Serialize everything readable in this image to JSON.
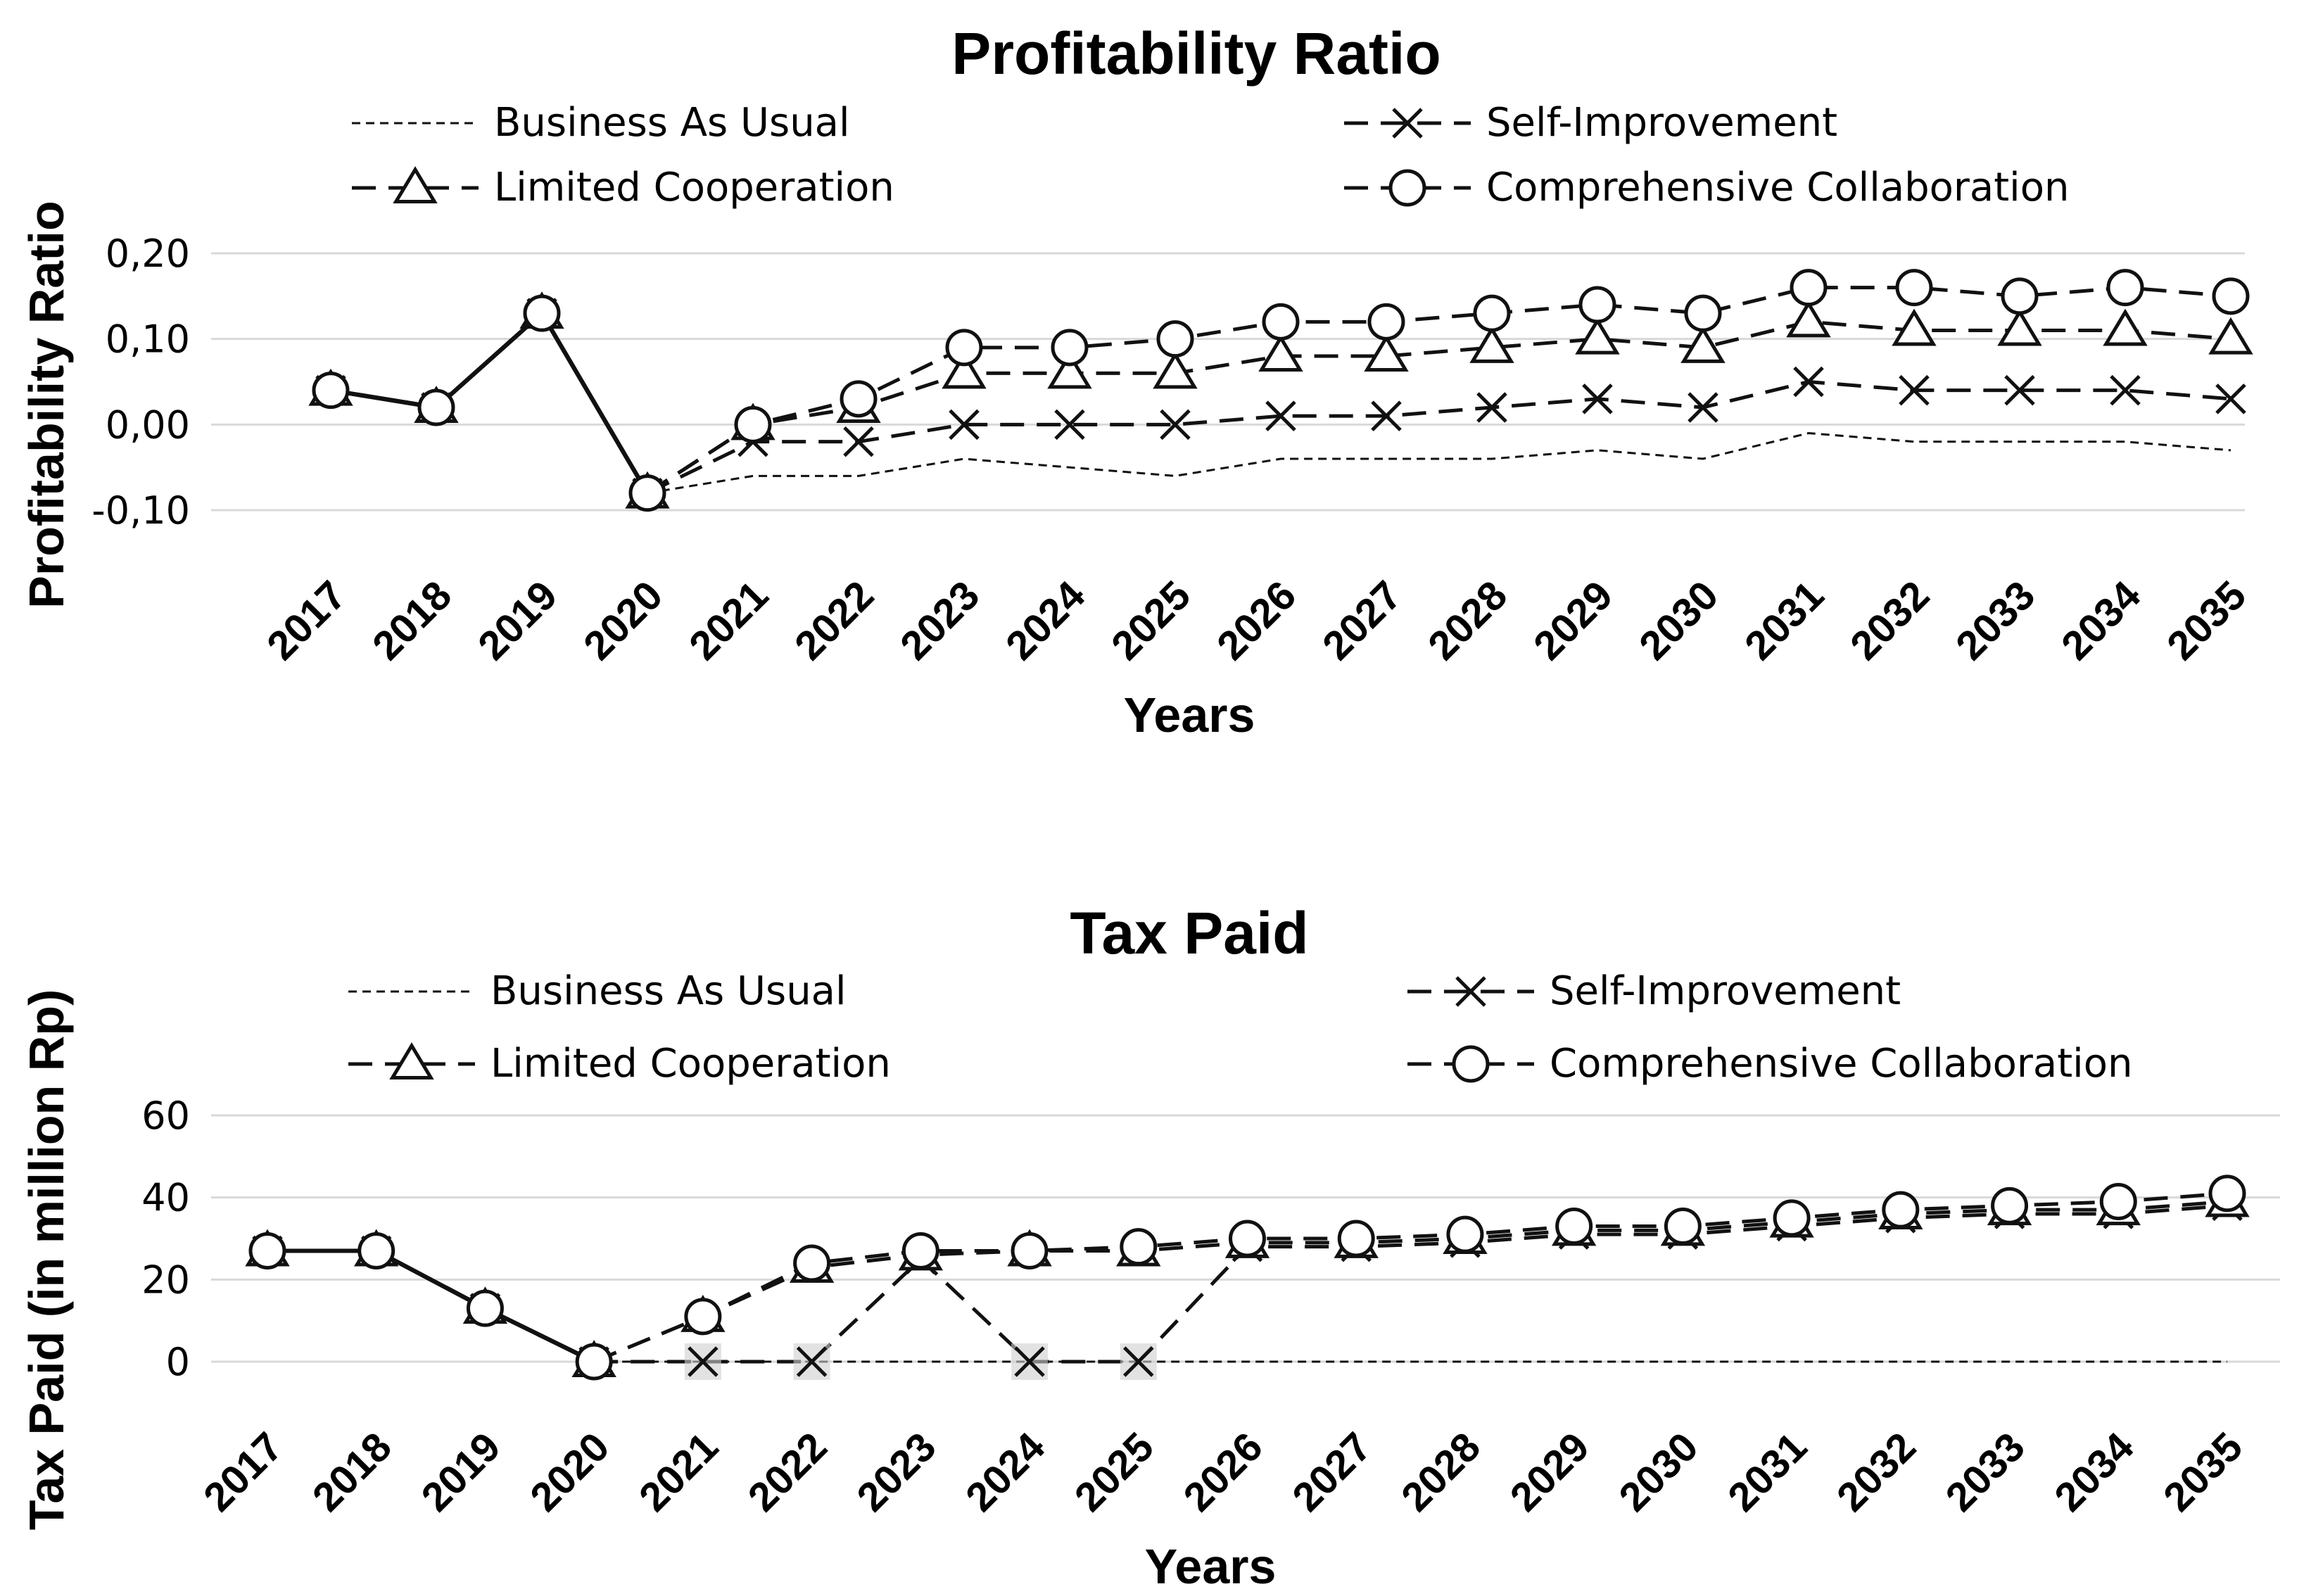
{
  "chart_data": [
    {
      "type": "line",
      "title": "Profitability Ratio",
      "xlabel": "Years",
      "ylabel": "Profitability Ratio",
      "ylim": [
        -0.1,
        0.2
      ],
      "yticks": [
        "-0,10",
        "0,00",
        "0,10",
        "0,20"
      ],
      "grid": true,
      "legend_position": "top",
      "categories": [
        "2017",
        "2018",
        "2019",
        "2020",
        "2021",
        "2022",
        "2023",
        "2024",
        "2025",
        "2026",
        "2027",
        "2028",
        "2029",
        "2030",
        "2031",
        "2032",
        "2033",
        "2034",
        "2035"
      ],
      "series": [
        {
          "name": "Business As Usual",
          "style": "dotted",
          "marker": "none",
          "values": [
            0.04,
            0.02,
            0.13,
            -0.08,
            -0.06,
            -0.06,
            -0.04,
            -0.05,
            -0.06,
            -0.04,
            -0.04,
            -0.04,
            -0.03,
            -0.04,
            -0.01,
            -0.02,
            -0.02,
            -0.02,
            -0.03
          ]
        },
        {
          "name": "Self-Improvement",
          "style": "dash",
          "marker": "x",
          "values": [
            0.04,
            0.02,
            0.13,
            -0.08,
            -0.02,
            -0.02,
            0.0,
            0.0,
            0.0,
            0.01,
            0.01,
            0.02,
            0.03,
            0.02,
            0.05,
            0.04,
            0.04,
            0.04,
            0.03
          ]
        },
        {
          "name": "Limited Cooperation",
          "style": "dash",
          "marker": "triangle",
          "values": [
            0.04,
            0.02,
            0.13,
            -0.08,
            0.0,
            0.02,
            0.06,
            0.06,
            0.06,
            0.08,
            0.08,
            0.09,
            0.1,
            0.09,
            0.12,
            0.11,
            0.11,
            0.11,
            0.1
          ]
        },
        {
          "name": "Comprehensive Collaboration",
          "style": "dash",
          "marker": "circle",
          "values": [
            0.04,
            0.02,
            0.13,
            -0.08,
            0.0,
            0.03,
            0.09,
            0.09,
            0.1,
            0.12,
            0.12,
            0.13,
            0.14,
            0.13,
            0.16,
            0.16,
            0.15,
            0.16,
            0.15
          ]
        }
      ]
    },
    {
      "type": "line",
      "title": "Tax Paid",
      "xlabel": "Years",
      "ylabel": "Tax Paid (in million Rp)",
      "ylim": [
        0,
        60
      ],
      "yticks": [
        "0",
        "20",
        "40",
        "60"
      ],
      "grid": true,
      "legend_position": "top",
      "categories": [
        "2017",
        "2018",
        "2019",
        "2020",
        "2021",
        "2022",
        "2023",
        "2024",
        "2025",
        "2026",
        "2027",
        "2028",
        "2029",
        "2030",
        "2031",
        "2032",
        "2033",
        "2034",
        "2035"
      ],
      "series": [
        {
          "name": "Business As Usual",
          "style": "dotted",
          "marker": "none",
          "values": [
            27,
            27,
            13,
            0,
            0,
            0,
            0,
            0,
            0,
            0,
            0,
            0,
            0,
            0,
            0,
            0,
            0,
            0,
            0
          ]
        },
        {
          "name": "Self-Improvement",
          "style": "dash",
          "marker": "x",
          "values": [
            27,
            27,
            13,
            0,
            0,
            0,
            25,
            0,
            0,
            28,
            28,
            29,
            31,
            31,
            33,
            35,
            36,
            36,
            38
          ]
        },
        {
          "name": "Limited Cooperation",
          "style": "dash",
          "marker": "triangle",
          "values": [
            27,
            27,
            13,
            0,
            11,
            23,
            26,
            27,
            27,
            29,
            29,
            30,
            32,
            32,
            34,
            36,
            37,
            37,
            39
          ]
        },
        {
          "name": "Comprehensive Collaboration",
          "style": "dash",
          "marker": "circle",
          "values": [
            27,
            27,
            13,
            0,
            11,
            24,
            27,
            27,
            28,
            30,
            30,
            31,
            33,
            33,
            35,
            37,
            38,
            39,
            41
          ]
        }
      ]
    }
  ]
}
